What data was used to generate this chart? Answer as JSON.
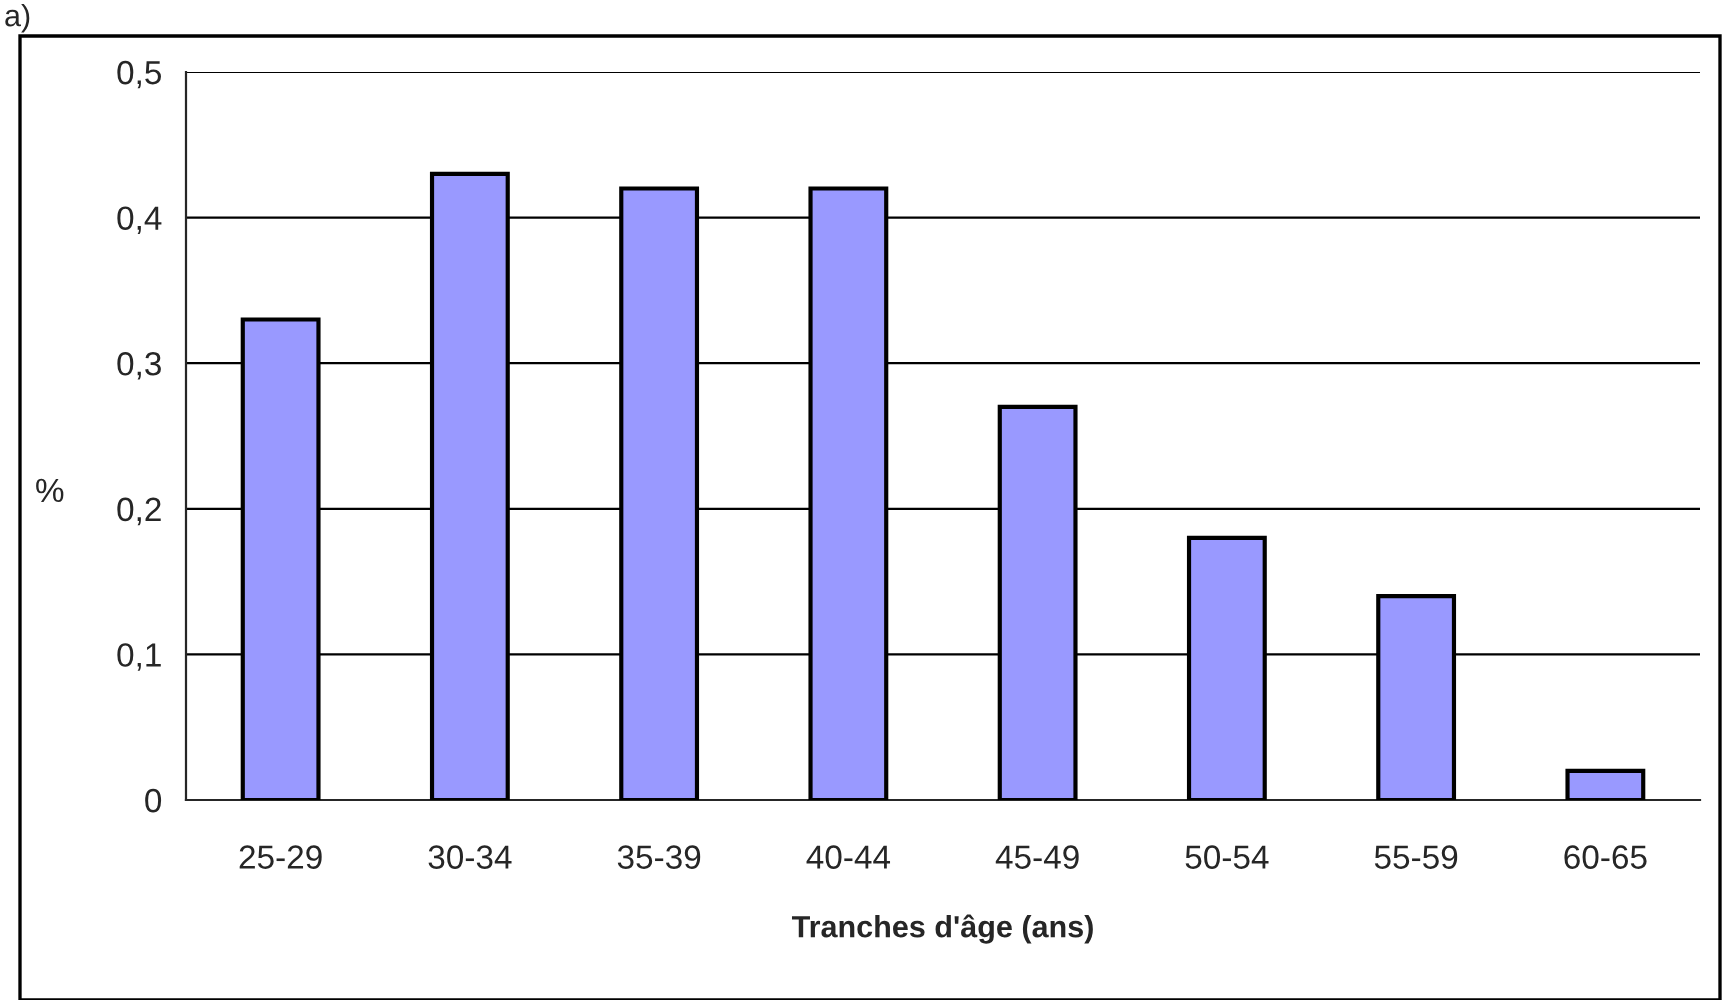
{
  "chart_data": {
    "type": "bar",
    "xlabel": "Tranches d'âge (ans)",
    "ylabel": "%",
    "categories": [
      "25-29",
      "30-34",
      "35-39",
      "40-44",
      "45-49",
      "50-54",
      "55-59",
      "60-65"
    ],
    "values": [
      0.33,
      0.43,
      0.42,
      0.42,
      0.27,
      0.18,
      0.14,
      0.02
    ],
    "color": "#9999ff",
    "ylim": [
      0,
      0.5
    ],
    "yticks": [
      {
        "value": 0,
        "label": "0"
      },
      {
        "value": 0.1,
        "label": "0,1"
      },
      {
        "value": 0.2,
        "label": "0,2"
      },
      {
        "value": 0.3,
        "label": "0,3"
      },
      {
        "value": 0.4,
        "label": "0,4"
      },
      {
        "value": 0.5,
        "label": "0,5"
      }
    ],
    "grid": "y",
    "annotations": [
      "a)"
    ]
  }
}
